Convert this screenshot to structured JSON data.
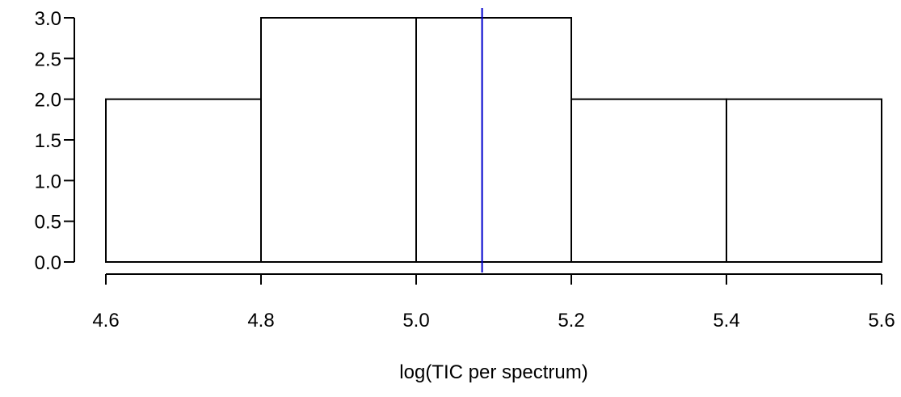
{
  "chart_data": {
    "type": "bar",
    "bins": [
      {
        "x0": 4.6,
        "x1": 4.8,
        "count": 2
      },
      {
        "x0": 4.8,
        "x1": 5.0,
        "count": 3
      },
      {
        "x0": 5.0,
        "x1": 5.2,
        "count": 3
      },
      {
        "x0": 5.2,
        "x1": 5.4,
        "count": 2
      },
      {
        "x0": 5.4,
        "x1": 5.6,
        "count": 2
      }
    ],
    "title": "",
    "xlabel": "log(TIC per spectrum)",
    "ylabel": "",
    "xlim": [
      4.6,
      5.6
    ],
    "ylim": [
      0,
      3
    ],
    "x_ticks": [
      "4.6",
      "4.8",
      "5.0",
      "5.2",
      "5.4",
      "5.6"
    ],
    "y_ticks": [
      "0.0",
      "0.5",
      "1.0",
      "1.5",
      "2.0",
      "2.5",
      "3.0"
    ],
    "reference_line": {
      "x": 5.085,
      "color": "#0000cd"
    },
    "grid": false,
    "colors": {
      "bar_fill": "#ffffff",
      "bar_stroke": "#000000",
      "axis": "#000000"
    }
  }
}
